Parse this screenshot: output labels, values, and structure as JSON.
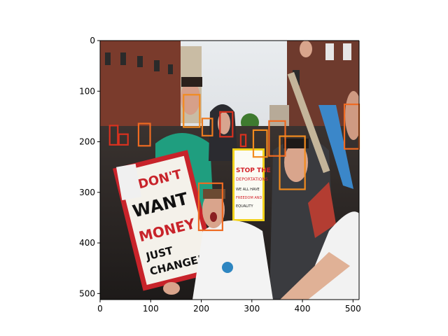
{
  "chart_data": {
    "type": "image-annotation",
    "title": "",
    "xlabel": "",
    "ylabel": "",
    "xlim": [
      0,
      512
    ],
    "ylim": [
      512,
      0
    ],
    "y_inverted": true,
    "xticks": [
      0,
      100,
      200,
      300,
      400,
      500
    ],
    "yticks": [
      0,
      100,
      200,
      300,
      400,
      500
    ],
    "image_description": "Street protest crowd; large placard reads I DON'T WANT MONEY JUST CHANGE!",
    "image_text": [
      "I DON'T WANT MONEY JUST CHANGE!",
      "STOP THE DEPORTATIONS WE ALL HAVE THE RIGHT TO FREEDOM AND EQUALITY"
    ],
    "boxes": [
      {
        "x0": 165,
        "y0": 107,
        "x1": 197,
        "y1": 171,
        "color": "#f28b1e"
      },
      {
        "x0": 202,
        "y0": 154,
        "x1": 222,
        "y1": 188,
        "color": "#ee7b20"
      },
      {
        "x0": 237,
        "y0": 141,
        "x1": 262,
        "y1": 190,
        "color": "#d9311f"
      },
      {
        "x0": 19,
        "y0": 168,
        "x1": 35,
        "y1": 206,
        "color": "#d9311f"
      },
      {
        "x0": 37,
        "y0": 185,
        "x1": 55,
        "y1": 206,
        "color": "#d9311f"
      },
      {
        "x0": 76,
        "y0": 164,
        "x1": 99,
        "y1": 208,
        "color": "#ee6a22"
      },
      {
        "x0": 278,
        "y0": 186,
        "x1": 288,
        "y1": 209,
        "color": "#d9311f"
      },
      {
        "x0": 303,
        "y0": 177,
        "x1": 330,
        "y1": 230,
        "color": "#f28b1e"
      },
      {
        "x0": 334,
        "y0": 159,
        "x1": 366,
        "y1": 228,
        "color": "#ee6a22"
      },
      {
        "x0": 355,
        "y0": 189,
        "x1": 405,
        "y1": 294,
        "color": "#f28b1e"
      },
      {
        "x0": 483,
        "y0": 126,
        "x1": 512,
        "y1": 214,
        "color": "#ee6a22"
      },
      {
        "x0": 195,
        "y0": 282,
        "x1": 242,
        "y1": 375,
        "color": "#ee6a22"
      }
    ]
  }
}
